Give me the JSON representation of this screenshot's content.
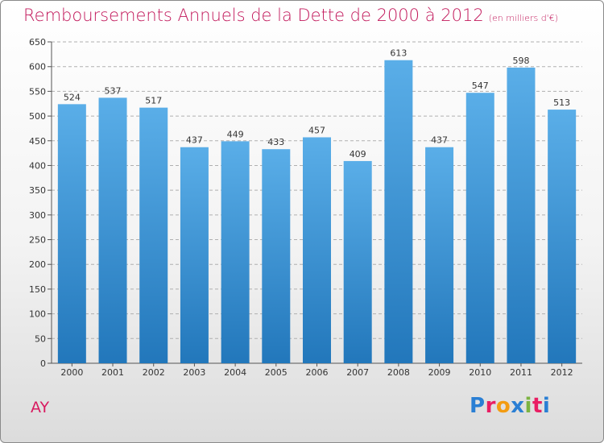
{
  "header": {
    "title": "Remboursements Annuels de la Dette de 2000 à 2012",
    "subtitle": "(en milliers d'€)"
  },
  "footer": {
    "commune": "AY",
    "logo_letters": [
      "P",
      "r",
      "o",
      "x",
      "i",
      "t",
      "i"
    ],
    "logo_colors": [
      "#2a7fd4",
      "#e91e63",
      "#f39c12",
      "#2a7fd4",
      "#7cb342",
      "#e91e63",
      "#2a7fd4"
    ]
  },
  "chart_data": {
    "type": "bar",
    "title": "Remboursements Annuels de la Dette de 2000 à 2012",
    "subtitle": "(en milliers d'€)",
    "categories": [
      "2000",
      "2001",
      "2002",
      "2003",
      "2004",
      "2005",
      "2006",
      "2007",
      "2008",
      "2009",
      "2010",
      "2011",
      "2012"
    ],
    "values": [
      524,
      537,
      517,
      437,
      449,
      433,
      457,
      409,
      613,
      437,
      547,
      598,
      513
    ],
    "ylim": [
      0,
      650
    ],
    "yticks": [
      0,
      50,
      100,
      150,
      200,
      250,
      300,
      350,
      400,
      450,
      500,
      550,
      600,
      650
    ],
    "grid": true,
    "bar_color_top": "#5aaee8",
    "bar_color_bottom": "#2277bb",
    "grid_color": "#b0b0b0"
  }
}
